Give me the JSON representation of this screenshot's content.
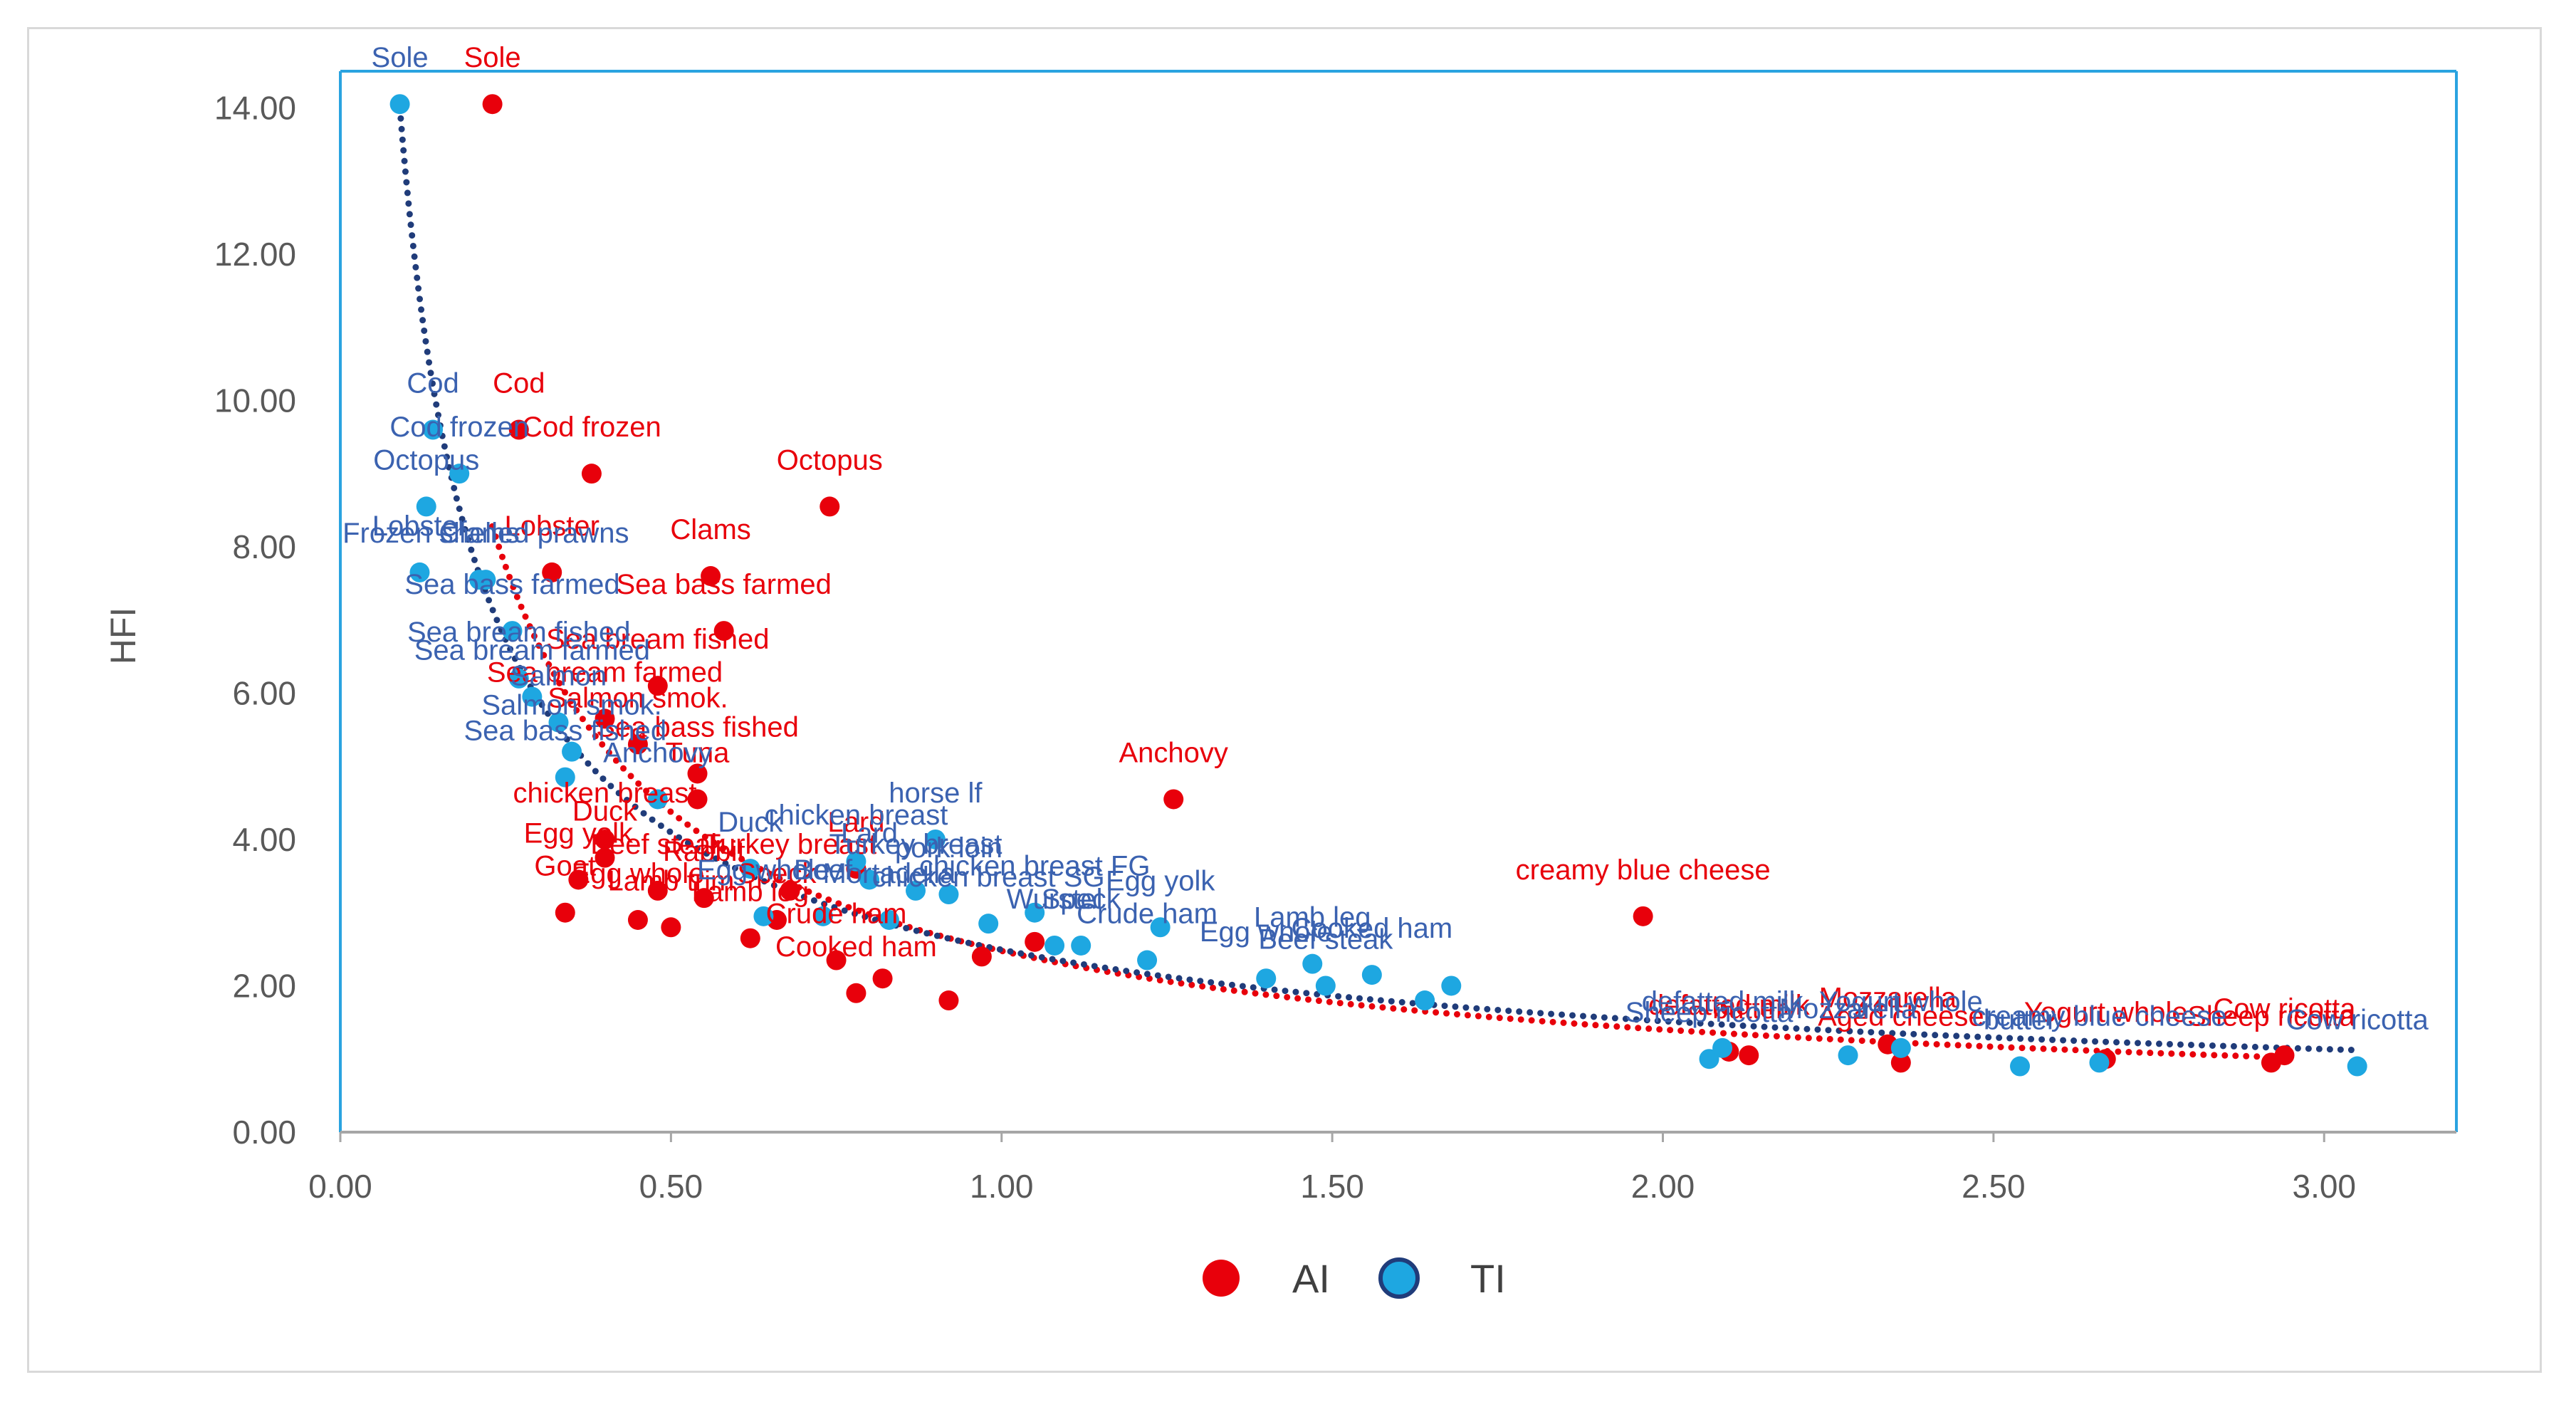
{
  "chart_data": {
    "type": "scatter",
    "title": "",
    "xlabel": "",
    "ylabel": "HFI",
    "xlim": [
      0,
      3.2
    ],
    "ylim": [
      0,
      14.5
    ],
    "x_ticks": [
      "0.00",
      "0.50",
      "1.00",
      "1.50",
      "2.00",
      "2.50",
      "3.00"
    ],
    "y_ticks": [
      "0.00",
      "2.00",
      "4.00",
      "6.00",
      "8.00",
      "10.00",
      "12.00",
      "14.00"
    ],
    "grid": false,
    "legend_position": "bottom",
    "trendlines": "dotted",
    "series": [
      {
        "name": "AI",
        "color": "#e8000b",
        "label_color": "#e8000b",
        "trend_color": "#e8000b",
        "points": [
          {
            "x": 0.23,
            "y": 14.05,
            "label": "Sole"
          },
          {
            "x": 0.27,
            "y": 9.6,
            "label": "Cod"
          },
          {
            "x": 0.38,
            "y": 9.0,
            "label": "Cod frozen"
          },
          {
            "x": 0.74,
            "y": 8.55,
            "label": "Octopus"
          },
          {
            "x": 0.32,
            "y": 7.65,
            "label": "Lobster"
          },
          {
            "x": 0.56,
            "y": 7.6,
            "label": "Clams"
          },
          {
            "x": 0.58,
            "y": 6.85,
            "label": "Sea bass farmed"
          },
          {
            "x": 0.48,
            "y": 6.1,
            "label": "Sea bream fished"
          },
          {
            "x": 0.4,
            "y": 5.65,
            "label": "Sea bream farmed"
          },
          {
            "x": 0.45,
            "y": 5.3,
            "label": "Salmon smok."
          },
          {
            "x": 0.54,
            "y": 4.9,
            "label": "Sea bass fished"
          },
          {
            "x": 1.26,
            "y": 4.55,
            "label": "Anchovy"
          },
          {
            "x": 0.54,
            "y": 4.55,
            "label": "Tuna"
          },
          {
            "x": 0.4,
            "y": 4.0,
            "label": "chicken breast"
          },
          {
            "x": 0.4,
            "y": 3.75,
            "label": "Duck"
          },
          {
            "x": 0.36,
            "y": 3.45,
            "label": "Egg yolk"
          },
          {
            "x": 0.48,
            "y": 3.3,
            "label": "Beef steak"
          },
          {
            "x": 0.55,
            "y": 3.2,
            "label": "Rabbit"
          },
          {
            "x": 0.68,
            "y": 3.3,
            "label": "Turkey breast"
          },
          {
            "x": 0.78,
            "y": 3.6,
            "label": "Lard"
          },
          {
            "x": 0.34,
            "y": 3.0,
            "label": "Goat"
          },
          {
            "x": 0.45,
            "y": 2.9,
            "label": "Egg whole"
          },
          {
            "x": 0.5,
            "y": 2.8,
            "label": "Lamb trim"
          },
          {
            "x": 0.62,
            "y": 2.65,
            "label": "Lamb leg"
          },
          {
            "x": 0.66,
            "y": 2.9,
            "label": "Speck"
          },
          {
            "x": 0.75,
            "y": 2.35,
            "label": "Crude ham"
          },
          {
            "x": 0.78,
            "y": 1.9,
            "label": "Cooked ham"
          },
          {
            "x": 0.97,
            "y": 2.4,
            "label": ""
          },
          {
            "x": 1.05,
            "y": 2.6,
            "label": ""
          },
          {
            "x": 0.82,
            "y": 2.1,
            "label": ""
          },
          {
            "x": 0.92,
            "y": 1.8,
            "label": ""
          },
          {
            "x": 1.97,
            "y": 2.95,
            "label": "creamy blue cheese"
          },
          {
            "x": 2.1,
            "y": 1.1,
            "label": "defatted milk"
          },
          {
            "x": 2.13,
            "y": 1.05,
            "label": "butter"
          },
          {
            "x": 2.34,
            "y": 1.2,
            "label": "Mozzarella"
          },
          {
            "x": 2.36,
            "y": 0.95,
            "label": "Aged cheese"
          },
          {
            "x": 2.67,
            "y": 1.0,
            "label": "Yogurt whole"
          },
          {
            "x": 2.92,
            "y": 0.95,
            "label": "Sheep ricotta"
          },
          {
            "x": 2.94,
            "y": 1.05,
            "label": "Cow ricotta"
          }
        ]
      },
      {
        "name": "TI",
        "color": "#1ea7e1",
        "label_color": "#3b62b0",
        "trend_color": "#203c7a",
        "points": [
          {
            "x": 0.09,
            "y": 14.05,
            "label": "Sole"
          },
          {
            "x": 0.14,
            "y": 9.6,
            "label": "Cod"
          },
          {
            "x": 0.18,
            "y": 9.0,
            "label": "Cod frozen"
          },
          {
            "x": 0.13,
            "y": 8.55,
            "label": "Octopus"
          },
          {
            "x": 0.12,
            "y": 7.65,
            "label": "Lobster"
          },
          {
            "x": 0.22,
            "y": 7.55,
            "label": "Frozen shelled prawns"
          },
          {
            "x": 0.21,
            "y": 7.55,
            "label": "Clams"
          },
          {
            "x": 0.26,
            "y": 6.85,
            "label": "Sea bass farmed"
          },
          {
            "x": 0.27,
            "y": 6.2,
            "label": "Sea bream fished"
          },
          {
            "x": 0.29,
            "y": 5.95,
            "label": "Sea bream farmed"
          },
          {
            "x": 0.33,
            "y": 5.6,
            "label": "Salmon"
          },
          {
            "x": 0.35,
            "y": 5.2,
            "label": "Salmon smok."
          },
          {
            "x": 0.34,
            "y": 4.85,
            "label": "Sea bass fished"
          },
          {
            "x": 0.48,
            "y": 4.55,
            "label": "Anchovy"
          },
          {
            "x": 0.9,
            "y": 4.0,
            "label": "horse lf"
          },
          {
            "x": 0.78,
            "y": 3.7,
            "label": "chicken breast"
          },
          {
            "x": 0.8,
            "y": 3.45,
            "label": "Lard"
          },
          {
            "x": 0.62,
            "y": 3.6,
            "label": "Duck"
          },
          {
            "x": 0.87,
            "y": 3.3,
            "label": "Turkey breast"
          },
          {
            "x": 0.92,
            "y": 3.25,
            "label": "pork loin"
          },
          {
            "x": 0.98,
            "y": 2.85,
            "label": "chicken breast SG"
          },
          {
            "x": 1.05,
            "y": 3.0,
            "label": "chicken breast FG"
          },
          {
            "x": 0.73,
            "y": 2.95,
            "label": "Beef"
          },
          {
            "x": 0.83,
            "y": 2.9,
            "label": "Mortadella"
          },
          {
            "x": 0.64,
            "y": 2.95,
            "label": "Egg whole"
          },
          {
            "x": 1.08,
            "y": 2.55,
            "label": "Wurstel"
          },
          {
            "x": 1.12,
            "y": 2.55,
            "label": "Speck"
          },
          {
            "x": 1.22,
            "y": 2.35,
            "label": "Crude ham"
          },
          {
            "x": 1.24,
            "y": 2.8,
            "label": "Egg yolk"
          },
          {
            "x": 1.4,
            "y": 2.1,
            "label": "Egg whole"
          },
          {
            "x": 1.47,
            "y": 2.3,
            "label": "Lamb leg"
          },
          {
            "x": 1.49,
            "y": 2.0,
            "label": "Beef steak"
          },
          {
            "x": 1.56,
            "y": 2.15,
            "label": "Cooked ham"
          },
          {
            "x": 1.64,
            "y": 1.8,
            "label": ""
          },
          {
            "x": 1.68,
            "y": 2.0,
            "label": ""
          },
          {
            "x": 2.07,
            "y": 1.0,
            "label": "Sheep ricotta"
          },
          {
            "x": 2.09,
            "y": 1.15,
            "label": "defatted milk"
          },
          {
            "x": 2.28,
            "y": 1.05,
            "label": "Mozzarella"
          },
          {
            "x": 2.36,
            "y": 1.15,
            "label": "Yogurt whole"
          },
          {
            "x": 2.54,
            "y": 0.9,
            "label": "butter"
          },
          {
            "x": 2.66,
            "y": 0.95,
            "label": "creamy blue cheese"
          },
          {
            "x": 3.05,
            "y": 0.9,
            "label": "Cow ricotta"
          }
        ]
      }
    ]
  }
}
